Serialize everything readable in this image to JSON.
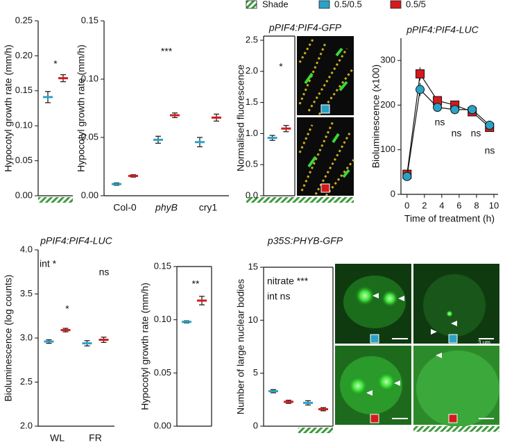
{
  "legend": [
    {
      "label": "Shade",
      "pattern": "hatch"
    },
    {
      "label": "0.5/0.5",
      "color": "#2aa3c8"
    },
    {
      "label": "0.5/5",
      "color": "#d7191c"
    }
  ],
  "chart_data": [
    {
      "type": "dot",
      "y_label": "Hypocotyl growth rate (mm/h)",
      "categories": [
        null
      ],
      "shade": [
        true
      ],
      "series": [
        {
          "color": "#2aa3c8",
          "values": [
            0.141
          ],
          "errors": [
            0.008
          ]
        },
        {
          "color": "#d7191c",
          "values": [
            0.168
          ],
          "errors": [
            0.005
          ]
        }
      ],
      "ylim": [
        0,
        0.25
      ],
      "yticks": [
        {
          "value": 0,
          "label": "0.00"
        },
        {
          "value": 0.05,
          "label": "0.05"
        },
        {
          "value": 0.1,
          "label": "0.10"
        },
        {
          "value": 0.15,
          "label": "0.15"
        },
        {
          "value": 0.2,
          "label": "0.20"
        },
        {
          "value": 0.25,
          "label": "0.25"
        }
      ],
      "annotations": [
        "*"
      ]
    },
    {
      "type": "dot",
      "y_label": "Hypocotyl growth rate (mm/h)",
      "categories": [
        "Col-0",
        "phyB",
        "cry1"
      ],
      "shade": [
        false,
        false,
        false
      ],
      "series": [
        {
          "color": "#2aa3c8",
          "values": [
            0.01,
            0.048,
            0.046
          ],
          "errors": [
            0.001,
            0.003,
            0.004
          ]
        },
        {
          "color": "#d7191c",
          "values": [
            0.017,
            0.069,
            0.067
          ],
          "errors": [
            0.001,
            0.002,
            0.003
          ]
        }
      ],
      "ylim": [
        0,
        0.15
      ],
      "yticks": [
        {
          "value": 0,
          "label": "0.00"
        },
        {
          "value": 0.05,
          "label": "0.05"
        },
        {
          "value": 0.1,
          "label": "0.10"
        },
        {
          "value": 0.15,
          "label": "0.15"
        }
      ],
      "annotations": [
        "***"
      ]
    },
    {
      "type": "dot",
      "title": "pPIF4:PIF4-GFP",
      "y_label": "Normalised fluorescence",
      "categories": [
        null
      ],
      "shade": [
        true
      ],
      "series": [
        {
          "color": "#2aa3c8",
          "values": [
            0.93
          ],
          "errors": [
            0.04
          ]
        },
        {
          "color": "#d7191c",
          "values": [
            1.08
          ],
          "errors": [
            0.05
          ]
        }
      ],
      "ylim": [
        0,
        2.5
      ],
      "yticks": [
        {
          "value": 0,
          "label": "0.0"
        },
        {
          "value": 0.5,
          "label": "0.5"
        },
        {
          "value": 1,
          "label": "1.0"
        },
        {
          "value": 1.5,
          "label": "1.5"
        },
        {
          "value": 2,
          "label": "2.0"
        },
        {
          "value": 2.5,
          "label": "2.5"
        }
      ],
      "annotations": [
        "*"
      ]
    },
    {
      "type": "line",
      "title": "pPIF4:PIF4-LUC",
      "y_label": "Bioluminescence (x100)",
      "x_label": "Time of treatment (h)",
      "x": [
        0,
        1.5,
        3.5,
        5.5,
        7.5,
        9.5
      ],
      "series": [
        {
          "color": "#d7191c",
          "marker": "square",
          "values": [
            45,
            270,
            210,
            200,
            185,
            150
          ],
          "errors": [
            4,
            15,
            10,
            8,
            8,
            6
          ]
        },
        {
          "color": "#2aa3c8",
          "marker": "circle",
          "values": [
            40,
            235,
            195,
            190,
            190,
            155
          ],
          "errors": [
            4,
            15,
            10,
            10,
            8,
            6
          ]
        }
      ],
      "xlim": [
        -0.7,
        10
      ],
      "xticks": [
        0,
        2,
        4,
        6,
        8,
        10
      ],
      "ylim": [
        0,
        350
      ],
      "yticks": [
        0,
        100,
        200,
        300
      ],
      "annotations": [
        "*",
        "ns",
        "ns",
        "ns",
        "ns"
      ]
    },
    {
      "type": "dot",
      "title": "pPIF4:PIF4-LUC",
      "y_label": "Bioluminescence (log counts)",
      "categories": [
        "WL",
        "FR"
      ],
      "shade": [
        false,
        false
      ],
      "series": [
        {
          "color": "#2aa3c8",
          "values": [
            2.96,
            2.94
          ],
          "errors": [
            0.02,
            0.03
          ]
        },
        {
          "color": "#d7191c",
          "values": [
            3.09,
            2.98
          ],
          "errors": [
            0.02,
            0.03
          ]
        }
      ],
      "ylim": [
        2,
        4
      ],
      "yticks": [
        {
          "value": 2,
          "label": "2.0"
        },
        {
          "value": 2.5,
          "label": "2.5"
        },
        {
          "value": 3,
          "label": "3.0"
        },
        {
          "value": 3.5,
          "label": "3.5"
        },
        {
          "value": 4,
          "label": "4.0"
        }
      ],
      "annotations": [
        "int *",
        "*",
        "ns"
      ]
    },
    {
      "type": "dot",
      "y_label": "Hypocotyl growth rate (mm/h)",
      "categories": [
        null
      ],
      "shade": [
        false
      ],
      "series": [
        {
          "color": "#2aa3c8",
          "values": [
            0.098
          ],
          "errors": [
            0.001
          ]
        },
        {
          "color": "#d7191c",
          "values": [
            0.118
          ],
          "errors": [
            0.004
          ]
        }
      ],
      "ylim": [
        0,
        0.15
      ],
      "yticks": [
        {
          "value": 0,
          "label": "0.00"
        },
        {
          "value": 0.05,
          "label": "0.05"
        },
        {
          "value": 0.1,
          "label": "0.10"
        },
        {
          "value": 0.15,
          "label": "0.15"
        }
      ],
      "annotations": [
        "**"
      ]
    },
    {
      "type": "dot",
      "title": "p35S:PHYB-GFP",
      "y_label": "Number of large nuclear bodies",
      "categories": [
        null,
        null
      ],
      "shade": [
        false,
        true
      ],
      "series": [
        {
          "color": "#2aa3c8",
          "values": [
            3.3,
            2.2
          ],
          "errors": [
            0.15,
            0.2
          ]
        },
        {
          "color": "#d7191c",
          "values": [
            2.3,
            1.6
          ],
          "errors": [
            0.15,
            0.15
          ]
        }
      ],
      "ylim": [
        0,
        15
      ],
      "yticks": [
        0,
        5,
        10,
        15
      ],
      "annotations": [
        "nitrate ***",
        "int ns"
      ],
      "scale_label": "3 µm"
    }
  ]
}
